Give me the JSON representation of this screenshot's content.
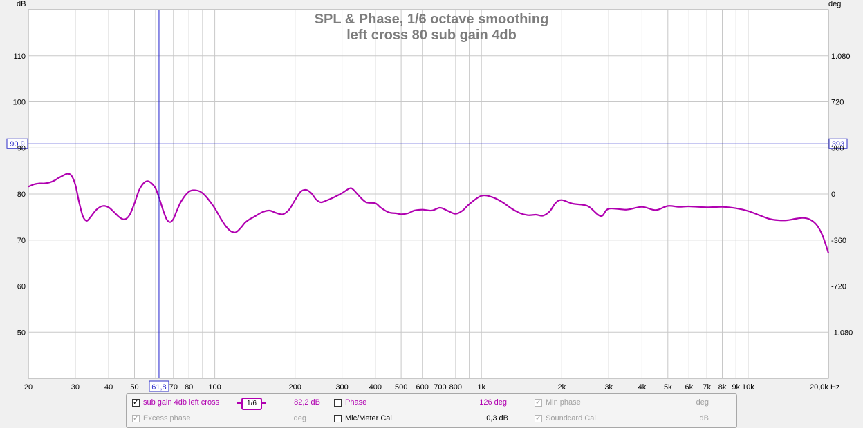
{
  "chart_data": {
    "type": "line",
    "title": "SPL & Phase, 1/6 octave smoothing",
    "subtitle": "left cross 80 sub gain 4db",
    "xscale": "log",
    "xlim": [
      20,
      20000
    ],
    "ylabel": "dB",
    "ylim": [
      40,
      120
    ],
    "y2label": "deg",
    "y2lim": [
      -1440,
      1440
    ],
    "grid": true,
    "x_ticks": [
      {
        "v": 20,
        "label": "20"
      },
      {
        "v": 30,
        "label": "30"
      },
      {
        "v": 40,
        "label": "40"
      },
      {
        "v": 50,
        "label": "50"
      },
      {
        "v": 70,
        "label": "70"
      },
      {
        "v": 80,
        "label": "80"
      },
      {
        "v": 100,
        "label": "100"
      },
      {
        "v": 200,
        "label": "200"
      },
      {
        "v": 300,
        "label": "300"
      },
      {
        "v": 400,
        "label": "400"
      },
      {
        "v": 500,
        "label": "500"
      },
      {
        "v": 600,
        "label": "600"
      },
      {
        "v": 700,
        "label": "700"
      },
      {
        "v": 800,
        "label": "800"
      },
      {
        "v": 1000,
        "label": "1k"
      },
      {
        "v": 2000,
        "label": "2k"
      },
      {
        "v": 3000,
        "label": "3k"
      },
      {
        "v": 4000,
        "label": "4k"
      },
      {
        "v": 5000,
        "label": "5k"
      },
      {
        "v": 6000,
        "label": "6k"
      },
      {
        "v": 7000,
        "label": "7k"
      },
      {
        "v": 8000,
        "label": "8k"
      },
      {
        "v": 9000,
        "label": "9k"
      },
      {
        "v": 10000,
        "label": "10k"
      },
      {
        "v": 20000,
        "label": "20,0k Hz"
      }
    ],
    "y_ticks": [
      {
        "v": 110,
        "label": "110"
      },
      {
        "v": 100,
        "label": "100"
      },
      {
        "v": 90,
        "label": "90"
      },
      {
        "v": 80,
        "label": "80"
      },
      {
        "v": 70,
        "label": "70"
      },
      {
        "v": 60,
        "label": "60"
      },
      {
        "v": 50,
        "label": "50"
      }
    ],
    "y2_ticks": [
      {
        "v": 1080,
        "label": "1.080"
      },
      {
        "v": 720,
        "label": "720"
      },
      {
        "v": 360,
        "label": "360"
      },
      {
        "v": 0,
        "label": "0"
      },
      {
        "v": -360,
        "label": "-360"
      },
      {
        "v": -720,
        "label": "-720"
      },
      {
        "v": -1080,
        "label": "-1.080"
      }
    ],
    "cursor": {
      "x": 61.8,
      "x_label": "61,8",
      "y": 90.9,
      "y_label": "90,9",
      "y2_label": "393"
    },
    "series": [
      {
        "name": "sub gain 4db left cross",
        "color": "#b000b0",
        "x": [
          20,
          21,
          22,
          23,
          24,
          25,
          26,
          27,
          28,
          29,
          30,
          31,
          32,
          33,
          34,
          36,
          38,
          40,
          42,
          44,
          46,
          48,
          50,
          52,
          54,
          56,
          58,
          60,
          62,
          64,
          66,
          68,
          70,
          72,
          75,
          80,
          85,
          90,
          95,
          100,
          105,
          110,
          115,
          120,
          125,
          130,
          135,
          140,
          150,
          160,
          170,
          180,
          190,
          200,
          210,
          220,
          230,
          240,
          250,
          260,
          280,
          300,
          320,
          330,
          350,
          370,
          400,
          420,
          450,
          480,
          500,
          530,
          560,
          600,
          650,
          700,
          750,
          800,
          850,
          900,
          1000,
          1100,
          1200,
          1300,
          1400,
          1500,
          1600,
          1700,
          1800,
          1900,
          2000,
          2200,
          2500,
          2800,
          3000,
          3500,
          4000,
          4500,
          5000,
          5500,
          6000,
          7000,
          8000,
          9000,
          10000,
          11000,
          12000,
          13000,
          14000,
          15000,
          16000,
          17000,
          18000,
          19000,
          20000
        ],
        "y": [
          81.6,
          82.1,
          82.3,
          82.3,
          82.5,
          82.9,
          83.5,
          84.0,
          84.4,
          84.0,
          82.0,
          78.2,
          75.2,
          74.2,
          74.8,
          76.6,
          77.4,
          77.1,
          76.0,
          74.9,
          74.5,
          75.5,
          78.0,
          80.8,
          82.3,
          82.8,
          82.3,
          81.2,
          79.0,
          76.5,
          74.5,
          73.9,
          74.6,
          76.3,
          78.5,
          80.5,
          80.8,
          80.2,
          78.7,
          76.9,
          74.8,
          73.0,
          71.9,
          71.7,
          72.6,
          73.8,
          74.5,
          75.0,
          76.0,
          76.4,
          75.9,
          75.6,
          76.6,
          78.7,
          80.5,
          80.9,
          80.2,
          78.8,
          78.2,
          78.5,
          79.3,
          80.2,
          81.2,
          81.0,
          79.4,
          78.2,
          78.0,
          77.0,
          76.0,
          75.8,
          75.6,
          75.8,
          76.4,
          76.6,
          76.4,
          77.0,
          76.3,
          75.7,
          76.4,
          77.8,
          79.6,
          79.3,
          78.2,
          76.8,
          75.8,
          75.4,
          75.5,
          75.3,
          76.2,
          78.1,
          78.7,
          77.9,
          77.4,
          75.2,
          76.8,
          76.6,
          77.2,
          76.5,
          77.4,
          77.2,
          77.3,
          77.1,
          77.2,
          76.9,
          76.3,
          75.4,
          74.6,
          74.3,
          74.3,
          74.6,
          74.8,
          74.5,
          73.4,
          71.0,
          67.2
        ]
      }
    ]
  },
  "legend": {
    "sub": {
      "label": "sub gain 4db left cross",
      "smoothing": "1/6",
      "value": "82,2 dB"
    },
    "phase": {
      "label": "Phase",
      "value": "126 deg"
    },
    "min_phase": {
      "label": "Min phase",
      "value": "deg"
    },
    "excess_phase": {
      "label": "Excess phase",
      "value": "deg"
    },
    "mic_cal": {
      "label": "Mic/Meter Cal",
      "value": "0,3 dB"
    },
    "soundcard_cal": {
      "label": "Soundcard Cal",
      "value": "dB"
    }
  }
}
